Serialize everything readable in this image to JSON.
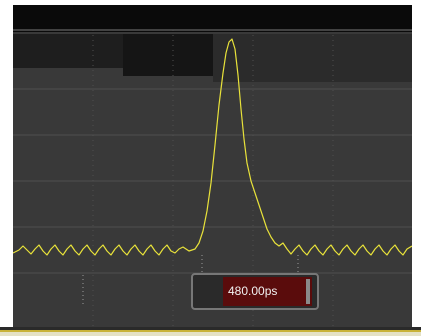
{
  "cursor_readout": {
    "value": "480.00ps"
  },
  "colors": {
    "background": "#393939",
    "trace": "#e8e23a",
    "readout_fill": "#5a0c0c",
    "frame": "#0a0a0a"
  },
  "trace": {
    "description_type": "waveform",
    "baseline_ripple_peaks": 15,
    "pulse_count": 1
  }
}
